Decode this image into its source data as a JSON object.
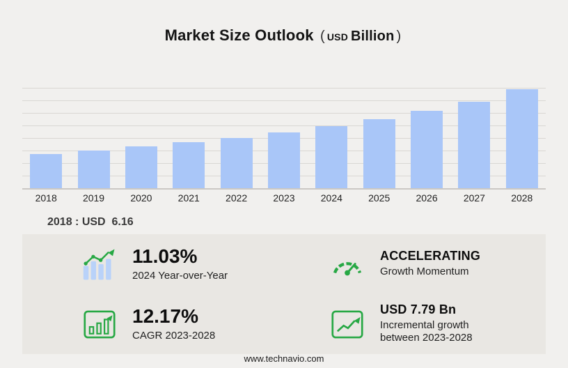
{
  "title": {
    "main": "Market Size Outlook",
    "open": "(",
    "currency": "USD",
    "unit": "Billion",
    "close": ")"
  },
  "chart_data": {
    "type": "bar",
    "title": "Market Size Outlook (USD Billion)",
    "categories": [
      "2018",
      "2019",
      "2020",
      "2021",
      "2022",
      "2023",
      "2024",
      "2025",
      "2026",
      "2027",
      "2028"
    ],
    "values": [
      6.16,
      6.79,
      7.48,
      8.24,
      9.08,
      10.03,
      11.14,
      12.43,
      13.9,
      15.6,
      17.82
    ],
    "xlabel": "",
    "ylabel": "USD Billion",
    "ylim": [
      0,
      18.8
    ],
    "grid": "horizontal",
    "bar_color": "#a9c6f8",
    "annotations": [
      "2018 : USD  6.16"
    ]
  },
  "callout": "2018 : USD  6.16",
  "stats": [
    {
      "icon": "bar-chart-growth-icon",
      "value": "11.03%",
      "label": "2024 Year-over-Year"
    },
    {
      "icon": "speedometer-icon",
      "value": "ACCELERATING",
      "label": "Growth Momentum"
    },
    {
      "icon": "cagr-chart-icon",
      "value": "12.17%",
      "label": "CAGR 2023-2028"
    },
    {
      "icon": "incremental-growth-icon",
      "value": "USD 7.79 Bn",
      "label": "Incremental growth between 2023-2028"
    }
  ],
  "footer": "www.technavio.com",
  "colors": {
    "background": "#f1f0ee",
    "panel": "#e9e7e3",
    "bar": "#a9c6f8",
    "accent_green": "#27a844",
    "gridline": "#d9d7d3"
  }
}
